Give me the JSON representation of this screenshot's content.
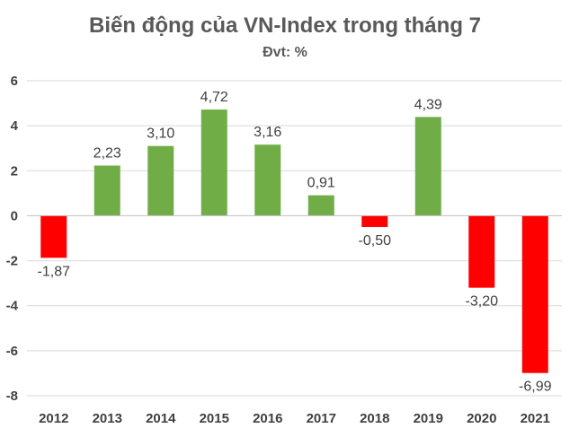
{
  "chart_data": {
    "type": "bar",
    "title": "Biến động của VN-Index trong tháng 7",
    "subtitle": "Đvt: %",
    "categories": [
      "2012",
      "2013",
      "2014",
      "2015",
      "2016",
      "2017",
      "2018",
      "2019",
      "2020",
      "2021"
    ],
    "values": [
      -1.87,
      2.23,
      3.1,
      4.72,
      3.16,
      0.91,
      -0.5,
      4.39,
      -3.2,
      -6.99
    ],
    "value_labels": [
      "-1,87",
      "2,23",
      "3,10",
      "4,72",
      "3,16",
      "0,91",
      "-0,50",
      "4,39",
      "-3,20",
      "-6,99"
    ],
    "yticks": [
      6,
      4,
      2,
      0,
      -2,
      -4,
      -6,
      -8
    ],
    "ytick_labels": [
      "6",
      "4",
      "2",
      "0",
      "-2",
      "-4",
      "-6",
      "-8"
    ],
    "ylim": [
      -8,
      6
    ],
    "grid": true,
    "legend": "none",
    "colors": {
      "positive": "#70ad47",
      "negative": "#ff0000"
    }
  }
}
